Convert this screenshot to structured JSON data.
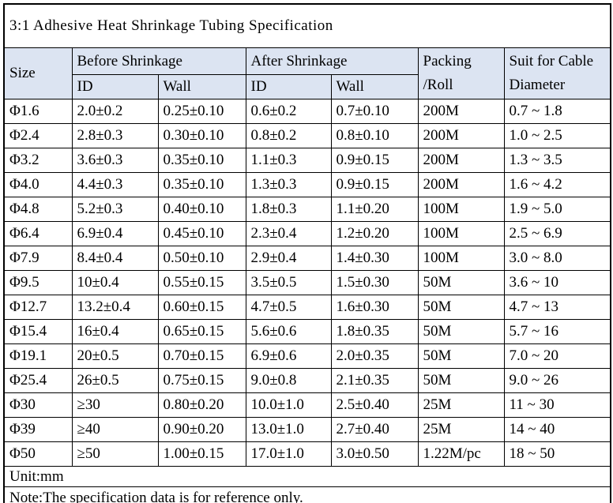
{
  "title": "3:1 Adhesive Heat Shrinkage Tubing Specification",
  "colors": {
    "header_bg": "#dce4f2",
    "border": "#000000",
    "background": "#ffffff",
    "text": "#000000"
  },
  "table": {
    "headers": {
      "size": "Size",
      "before_shrinkage": "Before Shrinkage",
      "after_shrinkage": "After Shrinkage",
      "packing_line1": "Packing",
      "packing_line2": "/Roll",
      "suit_line1": "Suit for Cable",
      "suit_line2": "Diameter",
      "before_id": "ID",
      "before_wall": "Wall",
      "after_id": "ID",
      "after_wall": "Wall"
    },
    "columns": [
      "Size",
      "Before Shrinkage ID",
      "Before Shrinkage Wall",
      "After Shrinkage ID",
      "After Shrinkage Wall",
      "Packing/Roll",
      "Suit for Cable Diameter"
    ],
    "rows": [
      [
        "Φ1.6",
        "2.0±0.2",
        "0.25±0.10",
        "0.6±0.2",
        "0.7±0.10",
        "200M",
        "0.7 ~ 1.8"
      ],
      [
        "Φ2.4",
        "2.8±0.3",
        "0.30±0.10",
        "0.8±0.2",
        "0.8±0.10",
        "200M",
        "1.0 ~ 2.5"
      ],
      [
        "Φ3.2",
        "3.6±0.3",
        "0.35±0.10",
        "1.1±0.3",
        "0.9±0.15",
        "200M",
        "1.3 ~ 3.5"
      ],
      [
        "Φ4.0",
        "4.4±0.3",
        "0.35±0.10",
        "1.3±0.3",
        "0.9±0.15",
        "200M",
        "1.6 ~ 4.2"
      ],
      [
        "Φ4.8",
        "5.2±0.3",
        "0.40±0.10",
        "1.8±0.3",
        "1.1±0.20",
        "100M",
        "1.9 ~ 5.0"
      ],
      [
        "Φ6.4",
        "6.9±0.4",
        "0.45±0.10",
        "2.3±0.4",
        "1.2±0.20",
        "100M",
        "2.5 ~ 6.9"
      ],
      [
        "Φ7.9",
        "8.4±0.4",
        "0.50±0.10",
        "2.9±0.4",
        "1.4±0.30",
        "100M",
        "3.0 ~ 8.0"
      ],
      [
        "Φ9.5",
        "10±0.4",
        "0.55±0.15",
        "3.5±0.5",
        "1.5±0.30",
        "50M",
        "3.6 ~ 10"
      ],
      [
        "Φ12.7",
        "13.2±0.4",
        "0.60±0.15",
        "4.7±0.5",
        "1.6±0.30",
        "50M",
        "4.7 ~ 13"
      ],
      [
        "Φ15.4",
        "16±0.4",
        "0.65±0.15",
        "5.6±0.6",
        "1.8±0.35",
        "50M",
        "5.7 ~ 16"
      ],
      [
        "Φ19.1",
        "20±0.5",
        "0.70±0.15",
        "6.9±0.6",
        "2.0±0.35",
        "50M",
        "7.0 ~ 20"
      ],
      [
        "Φ25.4",
        "26±0.5",
        "0.75±0.15",
        "9.0±0.8",
        "2.1±0.35",
        "50M",
        "9.0 ~ 26"
      ],
      [
        "Φ30",
        "≥30",
        "0.80±0.20",
        "10.0±1.0",
        "2.5±0.40",
        "25M",
        "11 ~ 30"
      ],
      [
        "Φ39",
        "≥40",
        "0.90±0.20",
        "13.0±1.0",
        "2.7±0.40",
        "25M",
        "14 ~ 40"
      ],
      [
        "Φ50",
        "≥50",
        "1.00±0.15",
        "17.0±1.0",
        "3.0±0.50",
        "1.22M/pc",
        "18 ~ 50"
      ]
    ]
  },
  "footer": {
    "unit": "Unit:mm",
    "note": "Note:The specification data is for reference only."
  }
}
